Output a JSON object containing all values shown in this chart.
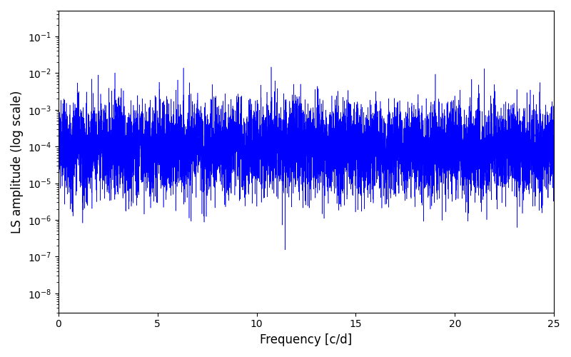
{
  "xlabel": "Frequency [c/d]",
  "ylabel": "LS amplitude (log scale)",
  "line_color": "#0000FF",
  "xlim": [
    0,
    25
  ],
  "ylim": [
    3e-09,
    0.5
  ],
  "freq_max": 25.0,
  "n_points": 10000,
  "seed": 137,
  "figsize": [
    8.0,
    5.0
  ],
  "dpi": 100,
  "background_color": "#ffffff"
}
